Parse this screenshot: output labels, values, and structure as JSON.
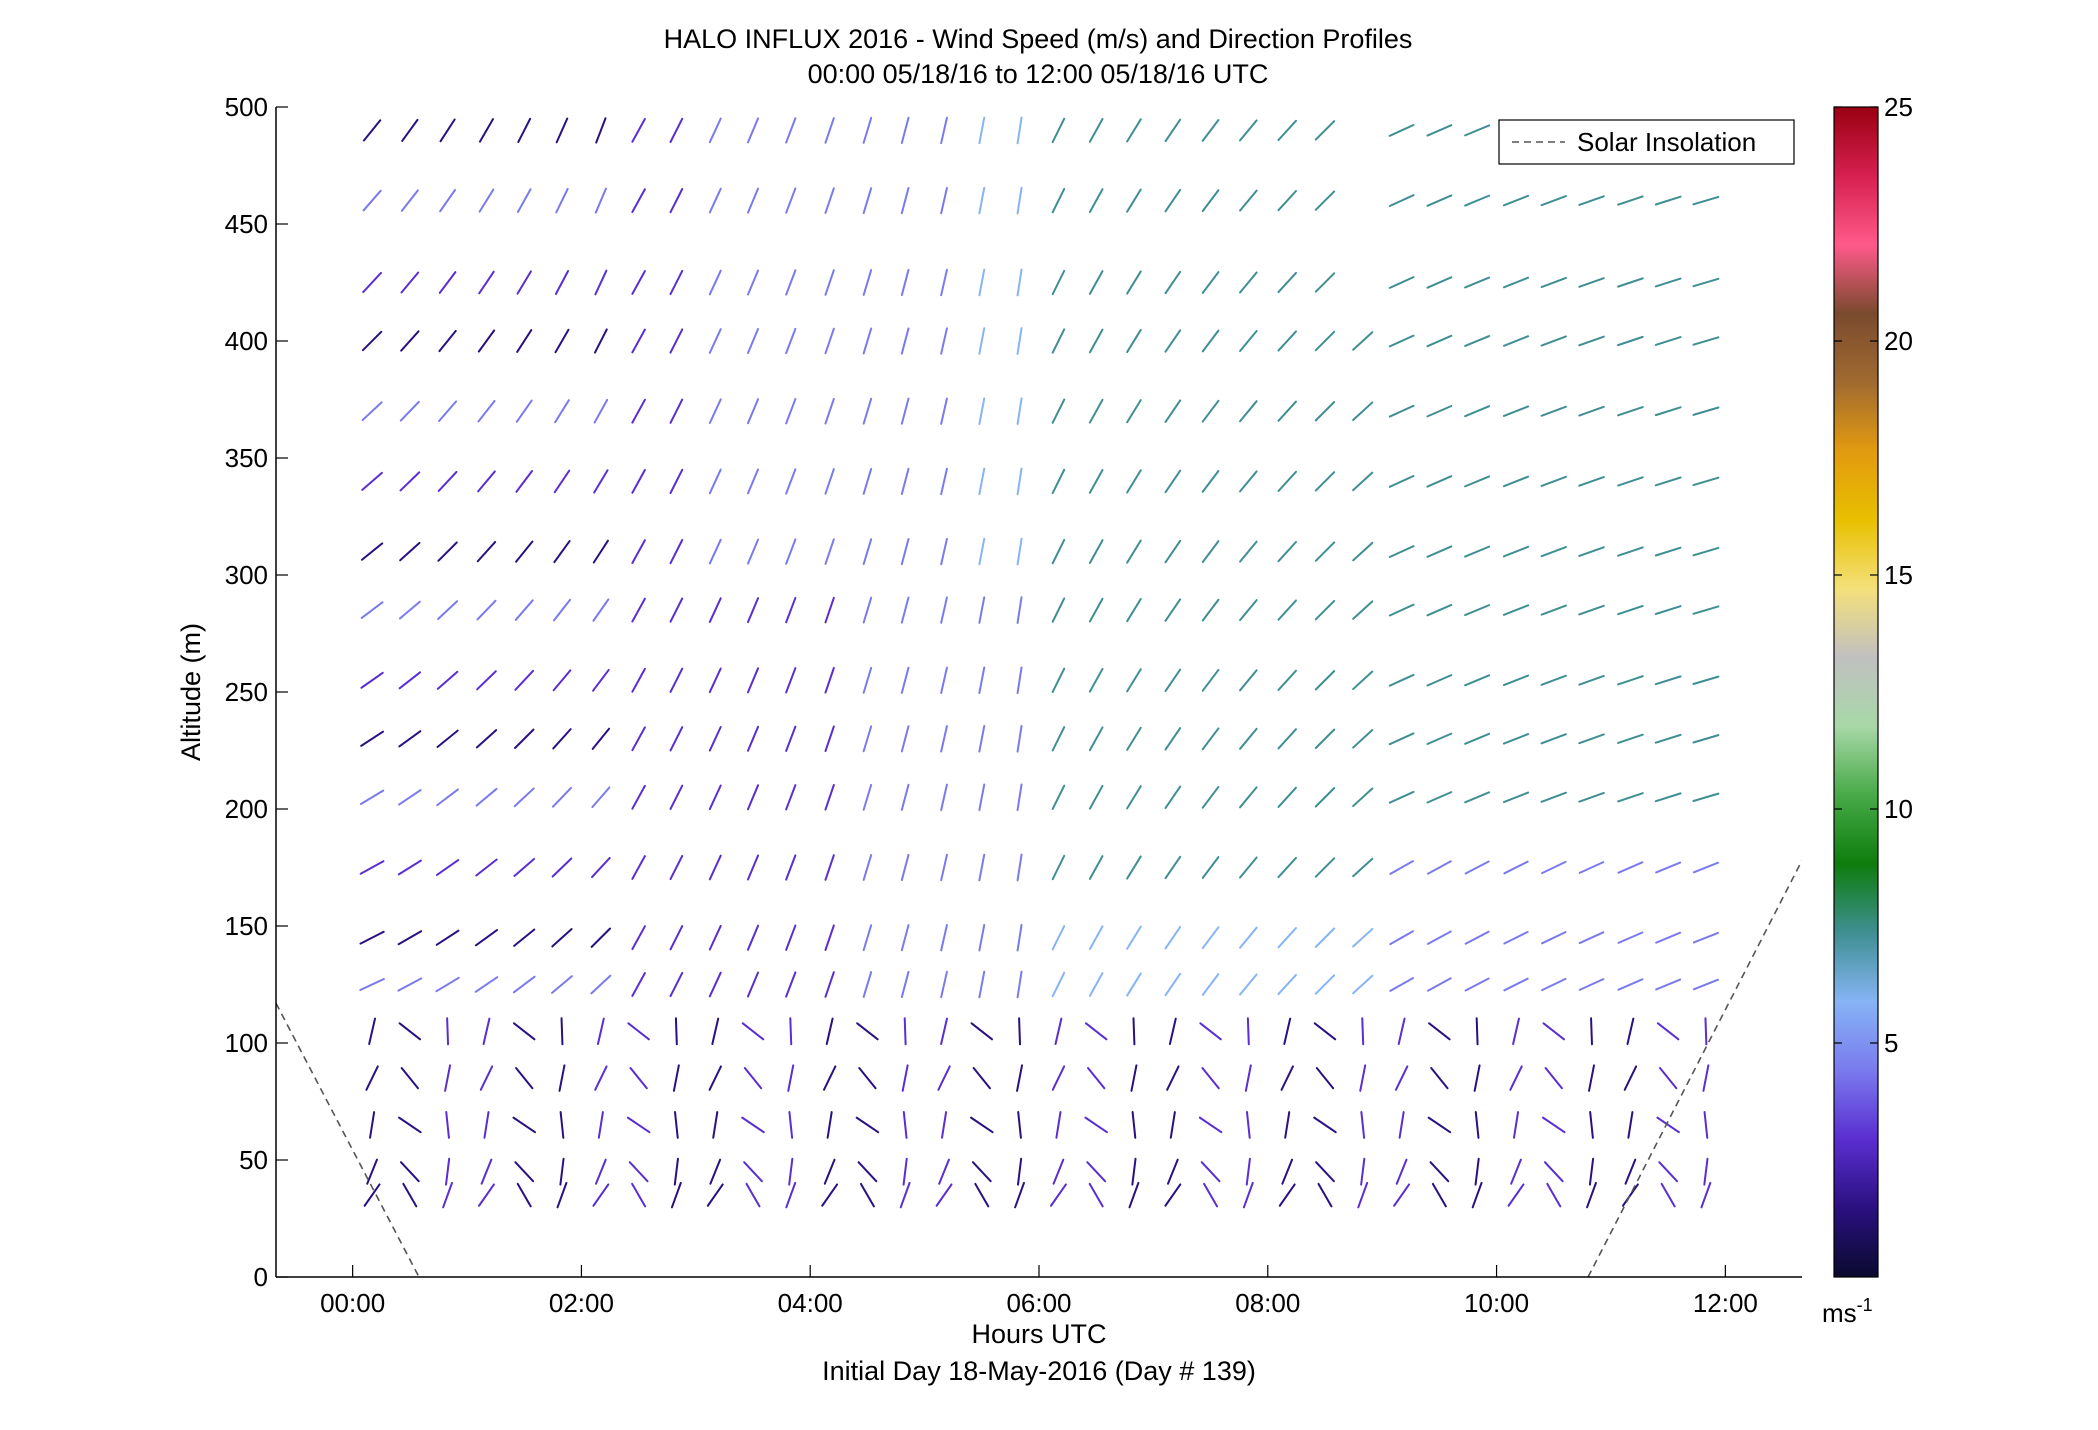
{
  "chart_data": {
    "type": "scatter",
    "title": "HALO INFLUX 2016 - Wind Speed (m/s) and Direction Profiles",
    "subtitle": "00:00 05/18/16 to 12:00 05/18/16  UTC",
    "xlabel": "Hours UTC",
    "xlabel2": "Initial Day 18-May-2016 (Day # 139)",
    "ylabel": "Altitude (m)",
    "xlim": [
      -0.67,
      12.67
    ],
    "ylim": [
      0,
      500
    ],
    "x_ticks": [
      0,
      2,
      4,
      6,
      8,
      10,
      12
    ],
    "x_tick_labels": [
      "00:00",
      "02:00",
      "04:00",
      "06:00",
      "08:00",
      "10:00",
      "12:00"
    ],
    "y_ticks": [
      0,
      50,
      100,
      150,
      200,
      250,
      300,
      350,
      400,
      450,
      500
    ],
    "y_tick_labels": [
      "0",
      "50",
      "100",
      "150",
      "200",
      "250",
      "300",
      "350",
      "400",
      "450",
      "500"
    ],
    "legend": {
      "position": "top-right",
      "entries": [
        "Solar Insolation"
      ]
    },
    "colorbar": {
      "min": 0,
      "max": 25,
      "ticks": [
        5,
        10,
        15,
        20,
        25
      ],
      "tick_labels": [
        "5",
        "10",
        "15",
        "20",
        "25"
      ],
      "unit_base": "ms",
      "unit_exp": "-1",
      "stops": [
        "#0a0a2e",
        "#2a1080",
        "#5a2ed0",
        "#7a7aee",
        "#86b4f5",
        "#3f8f92",
        "#0d7d0d",
        "#47aa47",
        "#a8d8a8",
        "#c0c0c0",
        "#f4e07a",
        "#e8c000",
        "#e29a10",
        "#a06a30",
        "#7a4a2e",
        "#ff5a8a",
        "#d62050",
        "#9a0012"
      ]
    },
    "solar_insolation": [
      {
        "x": [
          -0.67,
          0.58
        ],
        "y": [
          117,
          0
        ]
      },
      {
        "x": [
          10.8,
          12.67
        ],
        "y": [
          0,
          178
        ]
      }
    ],
    "wind_profiles": {
      "description_note": "",
      "altitudes_m": [
        35,
        45,
        65,
        85,
        105,
        125,
        145,
        175,
        205,
        230,
        255,
        285,
        310,
        340,
        370,
        400,
        425,
        460,
        490
      ],
      "times_h": [
        0.17,
        0.5,
        0.83,
        1.17,
        1.5,
        1.83,
        2.17,
        2.5,
        2.83,
        3.17,
        3.5,
        3.83,
        4.17,
        4.5,
        4.83,
        5.17,
        5.5,
        5.83,
        6.17,
        6.5,
        6.83,
        7.17,
        7.5,
        7.83,
        8.17,
        8.5,
        8.83,
        9.17,
        9.5,
        9.83,
        10.17,
        10.5,
        10.83,
        11.17,
        11.5,
        11.83
      ]
    }
  }
}
